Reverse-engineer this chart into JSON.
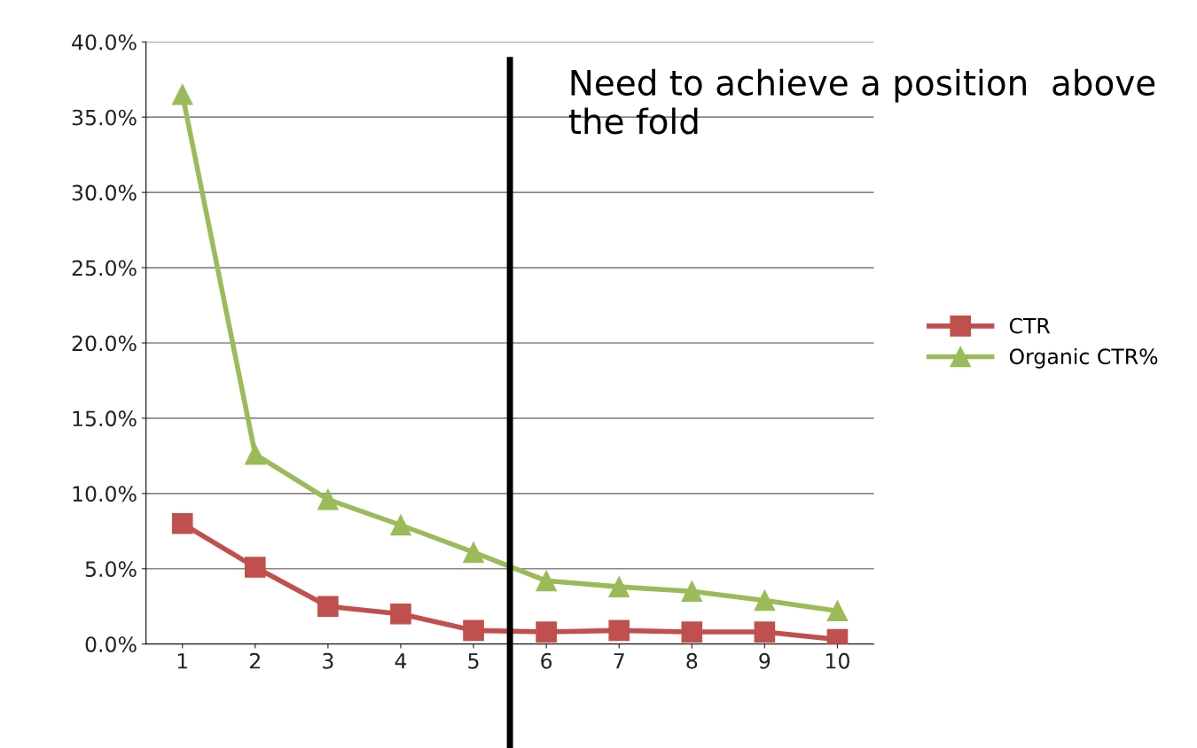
{
  "chart_data": {
    "type": "line",
    "x": [
      1,
      2,
      3,
      4,
      5,
      6,
      7,
      8,
      9,
      10
    ],
    "xlim": [
      0.5,
      10.5
    ],
    "xticks": [
      1,
      2,
      3,
      4,
      5,
      6,
      7,
      8,
      9,
      10
    ],
    "ylim": [
      0,
      40
    ],
    "yticks": [
      {
        "value": 0,
        "label": "0.0%"
      },
      {
        "value": 5,
        "label": "5.0%"
      },
      {
        "value": 10,
        "label": "10.0%"
      },
      {
        "value": 15,
        "label": "15.0%"
      },
      {
        "value": 20,
        "label": "20.0%"
      },
      {
        "value": 25,
        "label": "25.0%"
      },
      {
        "value": 30,
        "label": "30.0%"
      },
      {
        "value": 35,
        "label": "35.0%"
      },
      {
        "value": 40,
        "label": "40.0%"
      }
    ],
    "grid": "y",
    "legend": "right",
    "line_style": "solid",
    "series": [
      {
        "name": "CTR",
        "color": "#c0504d",
        "marker": "square",
        "values": [
          8.0,
          5.1,
          2.5,
          2.0,
          0.9,
          0.8,
          0.9,
          0.8,
          0.8,
          0.3
        ]
      },
      {
        "name": "Organic CTR%",
        "color": "#9bbb59",
        "marker": "triangle",
        "values": [
          36.5,
          12.6,
          9.6,
          7.9,
          6.1,
          4.2,
          3.8,
          3.5,
          2.9,
          2.2
        ]
      }
    ],
    "ref_lines": [
      {
        "axis": "x",
        "value": 5.5,
        "label": "Need to achieve a position  above the fold",
        "color": "#000000"
      }
    ]
  }
}
